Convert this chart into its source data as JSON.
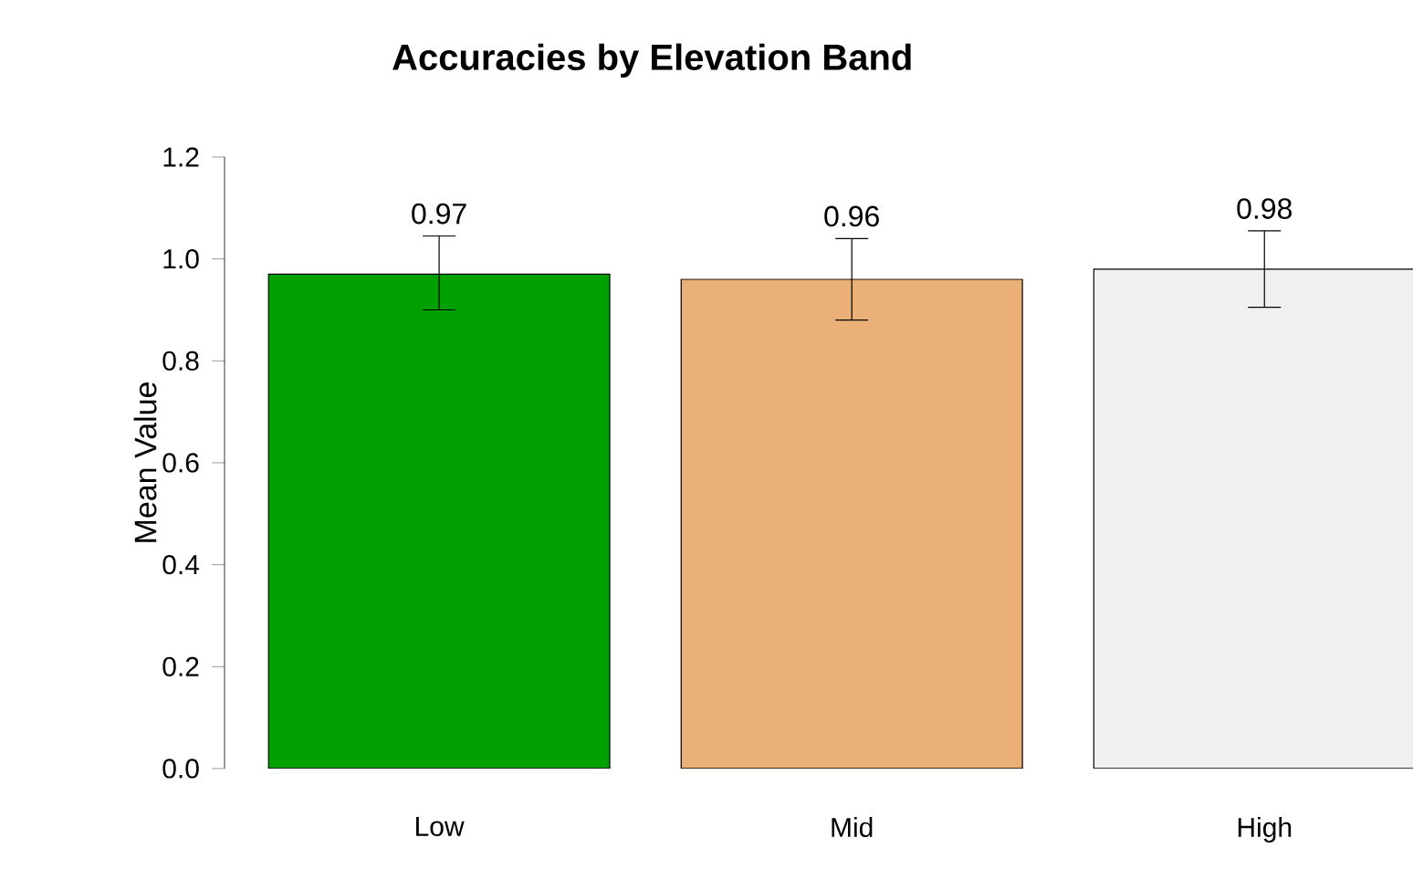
{
  "chart_data": {
    "type": "bar",
    "title": "Accuracies by Elevation Band",
    "ylabel": "Mean Value",
    "categories": [
      "Low",
      "Mid",
      "High"
    ],
    "values": [
      0.97,
      0.96,
      0.98
    ],
    "colors": [
      "#00a000",
      "#ebb077",
      "#f0f0f0"
    ],
    "errors": [
      [
        0.9,
        1.045
      ],
      [
        0.88,
        1.04
      ],
      [
        0.905,
        1.055
      ]
    ],
    "ylim": [
      0,
      1.2
    ],
    "yticks": [
      {
        "value": 0,
        "label": "0.0"
      },
      {
        "value": 0.2,
        "label": "0.2"
      },
      {
        "value": 0.4,
        "label": "0.4"
      },
      {
        "value": 0.6,
        "label": "0.6"
      },
      {
        "value": 0.8,
        "label": "0.8"
      },
      {
        "value": 1.0,
        "label": "1.0"
      },
      {
        "value": 1.2,
        "label": "1.2"
      }
    ],
    "data_labels": true
  }
}
